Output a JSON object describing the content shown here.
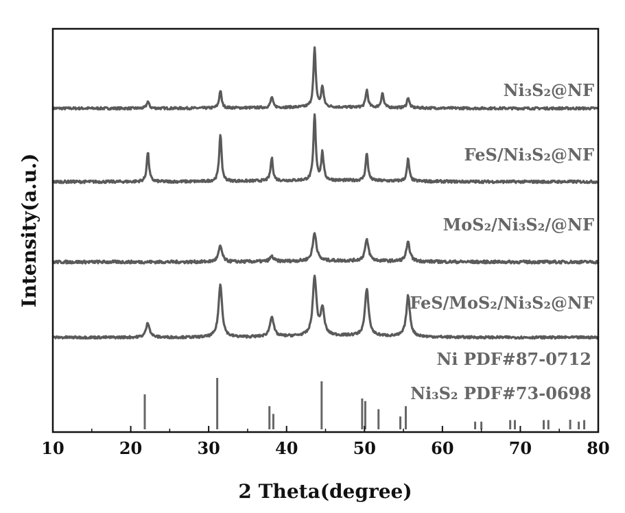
{
  "chart_data": {
    "type": "line",
    "xlabel": "2 Theta(degree)",
    "ylabel": "Intensity(a.u.)",
    "xlim": [
      10,
      80
    ],
    "xticks": [
      "10",
      "20",
      "30",
      "40",
      "50",
      "60",
      "70",
      "80"
    ],
    "yticks": "none",
    "grid": false,
    "series": [
      {
        "name": "Ni₃S₂@NF",
        "color": "#5a5a5a",
        "peaks": [
          [
            22.2,
            0.12
          ],
          [
            31.5,
            0.3
          ],
          [
            38.1,
            0.18
          ],
          [
            43.6,
            1.0
          ],
          [
            44.6,
            0.35
          ],
          [
            50.3,
            0.3
          ],
          [
            52.3,
            0.25
          ],
          [
            55.6,
            0.18
          ]
        ]
      },
      {
        "name": "FeS/Ni₃S₂@NF",
        "color": "#5a5a5a",
        "peaks": [
          [
            22.2,
            0.45
          ],
          [
            31.5,
            0.73
          ],
          [
            38.1,
            0.35
          ],
          [
            43.6,
            1.0
          ],
          [
            44.6,
            0.42
          ],
          [
            50.3,
            0.42
          ],
          [
            55.6,
            0.34
          ]
        ]
      },
      {
        "name": "MoS₂/Ni₃S₂/@NF",
        "color": "#5a5a5a",
        "peaks": [
          [
            31.5,
            0.38
          ],
          [
            38.1,
            0.12
          ],
          [
            43.6,
            0.68
          ],
          [
            50.3,
            0.5
          ],
          [
            55.6,
            0.45
          ]
        ]
      },
      {
        "name": "FeS/MoS₂/Ni₃S₂@NF",
        "color": "#5a5a5a",
        "peaks": [
          [
            22.2,
            0.25
          ],
          [
            31.5,
            0.9
          ],
          [
            38.1,
            0.35
          ],
          [
            43.6,
            1.0
          ],
          [
            44.6,
            0.45
          ],
          [
            50.3,
            0.8
          ],
          [
            55.6,
            0.7
          ]
        ]
      }
    ],
    "references": [
      {
        "name": "Ni PDF#87-0712",
        "color": "#666666",
        "lines": [
          [
            44.5,
            1.0
          ],
          [
            51.8,
            0.42
          ],
          [
            76.4,
            0.2
          ]
        ]
      },
      {
        "name": "Ni₃S₂ PDF#73-0698",
        "color": "#666666",
        "lines": [
          [
            21.8,
            0.68
          ],
          [
            31.1,
            1.0
          ],
          [
            37.8,
            0.45
          ],
          [
            38.3,
            0.3
          ],
          [
            49.7,
            0.6
          ],
          [
            50.1,
            0.55
          ],
          [
            54.6,
            0.25
          ],
          [
            55.3,
            0.45
          ],
          [
            64.2,
            0.15
          ],
          [
            65.0,
            0.15
          ],
          [
            68.7,
            0.18
          ],
          [
            69.3,
            0.18
          ],
          [
            73.0,
            0.18
          ],
          [
            73.6,
            0.18
          ],
          [
            77.5,
            0.15
          ],
          [
            78.2,
            0.18
          ]
        ]
      }
    ]
  }
}
